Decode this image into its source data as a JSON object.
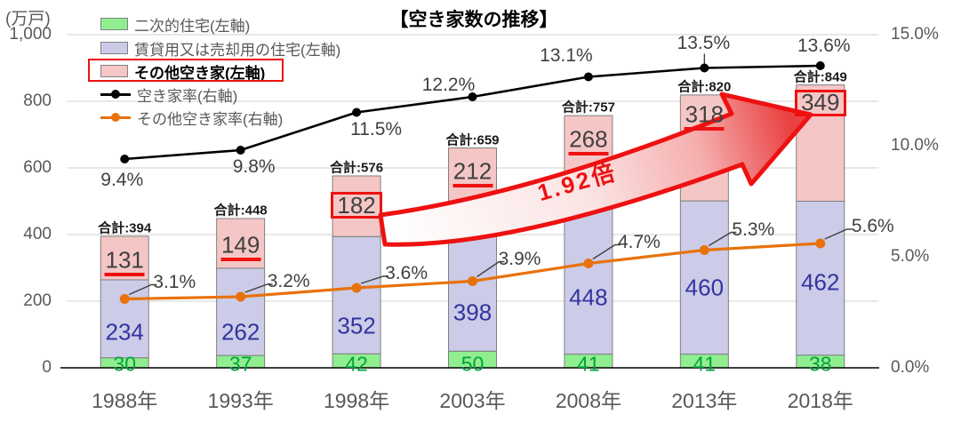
{
  "title": "【空き家数の推移】",
  "left_axis": {
    "unit": "(万戸)",
    "ticks": [
      "1,000",
      "800",
      "600",
      "400",
      "200",
      "0"
    ]
  },
  "right_axis": {
    "ticks": [
      "15.0%",
      "10.0%",
      "5.0%",
      "0.0%"
    ]
  },
  "legend": [
    {
      "label": "二次的住宅(左軸)",
      "marker": "swatch",
      "color_key": "green"
    },
    {
      "label": "賃貸用又は売却用の住宅(左軸)",
      "marker": "swatch",
      "color_key": "lavender"
    },
    {
      "label": "その他空き家(左軸)",
      "marker": "swatch",
      "color_key": "pink",
      "highlighted": true
    },
    {
      "label": "空き家率(右軸)",
      "marker": "line",
      "color_key": "black_line"
    },
    {
      "label": "その他空き家率(右軸)",
      "marker": "line",
      "color_key": "orange"
    }
  ],
  "chart_data": {
    "type": "bar+line combo (stacked bars left axis, two lines right axis)",
    "categories": [
      "1988年",
      "1993年",
      "1998年",
      "2003年",
      "2008年",
      "2013年",
      "2018年"
    ],
    "series": [
      {
        "name": "二次的住宅(左軸)",
        "kind": "bar",
        "axis": "left",
        "values": [
          30,
          37,
          42,
          50,
          41,
          41,
          38
        ]
      },
      {
        "name": "賃貸用又は売却用の住宅(左軸)",
        "kind": "bar",
        "axis": "left",
        "values": [
          234,
          262,
          352,
          398,
          448,
          460,
          462
        ]
      },
      {
        "name": "その他空き家(左軸)",
        "kind": "bar",
        "axis": "left",
        "values": [
          131,
          149,
          182,
          212,
          268,
          318,
          349
        ]
      },
      {
        "name": "空き家率(右軸)",
        "kind": "line",
        "axis": "right",
        "values": [
          9.4,
          9.8,
          11.5,
          12.2,
          13.1,
          13.5,
          13.6
        ]
      },
      {
        "name": "その他空き家率(右軸)",
        "kind": "line",
        "axis": "right",
        "values": [
          3.1,
          3.2,
          3.6,
          3.9,
          4.7,
          5.3,
          5.6
        ]
      }
    ],
    "totals": [
      394,
      448,
      576,
      659,
      757,
      820,
      849
    ],
    "total_label_prefix": "合計:",
    "left_ylim": [
      0,
      1000
    ],
    "right_ylim": [
      0,
      15
    ],
    "grid": "horizontal only",
    "legend_position": "top-left inside plot"
  },
  "annotation": {
    "arrow_label": "1.92倍",
    "boxed_values": [
      182,
      349
    ],
    "underlined_values": [
      131,
      149,
      212,
      268,
      318
    ]
  },
  "colors": {
    "green": "#90EE90",
    "lavender": "#CCCCE8",
    "pink": "#F5C6C6",
    "black_line": "#000000",
    "orange": "#E8720C",
    "red": "#EE1111",
    "axis_text": "#595959",
    "value_dark": "#404040",
    "navy": "#3333A0",
    "green_text": "#00A33C",
    "grid": "#D9D9D9",
    "bar_border": "#7F7F7F"
  }
}
